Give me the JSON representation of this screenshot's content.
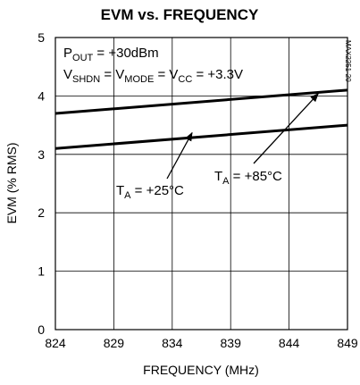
{
  "chart_data": {
    "type": "line",
    "title": "EVM vs. FREQUENCY",
    "xlabel": "FREQUENCY (MHz)",
    "ylabel": "EVM (% RMS)",
    "xlim": [
      824,
      849
    ],
    "ylim": [
      0,
      5
    ],
    "x_ticks": [
      "824",
      "829",
      "834",
      "839",
      "844",
      "849"
    ],
    "y_ticks": [
      "0",
      "1",
      "2",
      "3",
      "4",
      "5"
    ],
    "grid": true,
    "series": [
      {
        "name": "T_A = +25°C",
        "x": [
          824,
          849
        ],
        "y": [
          3.1,
          3.5
        ]
      },
      {
        "name": "T_A = +85°C",
        "x": [
          824,
          849
        ],
        "y": [
          3.7,
          4.1
        ]
      }
    ],
    "conditions": {
      "line1": {
        "main": "P",
        "sub": "OUT",
        "rest": " = +30dBm"
      },
      "line2": {
        "p1": "V",
        "s1": "SHDN",
        "p2": " = V",
        "s2": "MODE",
        "p3": " = V",
        "s3": "CC",
        "p4": " = +3.3V"
      }
    },
    "annotations": {
      "a25": {
        "pre": "T",
        "sub": "A",
        "post": " = +25°C",
        "target_x": 835.7,
        "target_y": 3.37
      },
      "a85": {
        "pre": "T",
        "sub": "A",
        "post": " = +85°C",
        "target_x": 846.5,
        "target_y": 4.04
      }
    },
    "part_number": "MAX2251-20"
  }
}
